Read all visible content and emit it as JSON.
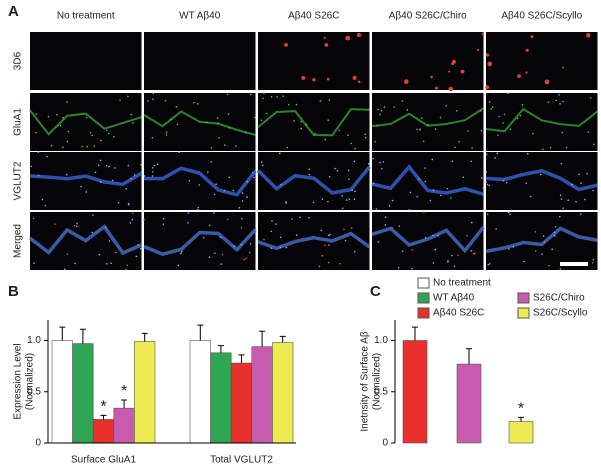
{
  "panel_labels": [
    "A",
    "B",
    "C"
  ],
  "column_labels": [
    "No treatment",
    "WT Aβ40",
    "Aβ40 S26C",
    "Aβ40 S26C/Chiro",
    "Aβ40 S26C/Scyllo"
  ],
  "row_labels": [
    {
      "text": "3D6",
      "color": "#e0403a"
    },
    {
      "text": "GluA1",
      "color": "#3aa03a"
    },
    {
      "text": "VGLUT2",
      "color": "#3050c0"
    },
    {
      "text": "Merged",
      "color": "#a04aa8"
    }
  ],
  "chart_data": [
    {
      "type": "bar",
      "ylabel": [
        "Expression Level",
        "(Normalized)"
      ],
      "categories": [
        "Surface GluA1",
        "Total VGLUT2"
      ],
      "series": [
        {
          "name": "No treatment",
          "color": "#ffffff",
          "values": [
            1.0,
            1.0
          ],
          "errors": [
            0.13,
            0.15
          ],
          "significance": [
            null,
            null
          ]
        },
        {
          "name": "WT Aβ40",
          "color": "#2ea552",
          "values": [
            0.97,
            0.88
          ],
          "errors": [
            0.14,
            0.07
          ],
          "significance": [
            null,
            null
          ]
        },
        {
          "name": "Aβ40 S26C",
          "color": "#e8302c",
          "values": [
            0.23,
            0.78
          ],
          "errors": [
            0.04,
            0.08
          ],
          "significance": [
            "*",
            null
          ]
        },
        {
          "name": "S26C/Chiro",
          "color": "#c75bb0",
          "values": [
            0.34,
            0.94
          ],
          "errors": [
            0.08,
            0.15
          ],
          "significance": [
            "*",
            null
          ]
        },
        {
          "name": "S26C/Scyllo",
          "color": "#eeea52",
          "values": [
            0.99,
            0.98
          ],
          "errors": [
            0.08,
            0.06
          ],
          "significance": [
            null,
            null
          ]
        }
      ],
      "ylim": [
        0,
        1.2
      ],
      "yticks": [
        0,
        0.5,
        {
          "value": 1,
          "label": "1.0"
        }
      ]
    },
    {
      "type": "bar",
      "ylabel": [
        "Inetnsity of Surface Aβ",
        "(Normalized)"
      ],
      "values": [
        1.0,
        0.77,
        0.21
      ],
      "errors": [
        0.13,
        0.15,
        0.04
      ],
      "colors": [
        "#e8302c",
        "#c75bb0",
        "#eeea52"
      ],
      "significance": [
        null,
        null,
        "*"
      ],
      "ylim": [
        0,
        1.2
      ],
      "yticks": [
        0,
        0.5,
        {
          "value": 1,
          "label": "1.0"
        }
      ]
    }
  ]
}
